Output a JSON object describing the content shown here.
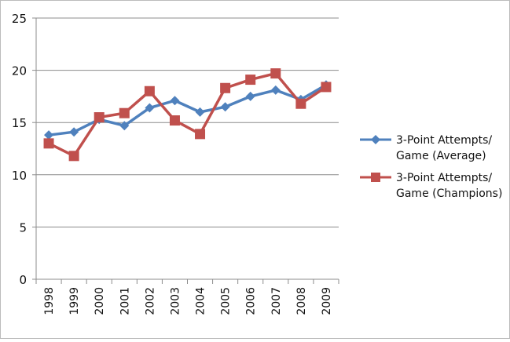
{
  "chart_data": {
    "type": "line",
    "categories": [
      "1998",
      "1999",
      "2000",
      "2001",
      "2002",
      "2003",
      "2004",
      "2005",
      "2006",
      "2007",
      "2008",
      "2009"
    ],
    "ylim": [
      0,
      25
    ],
    "yticks": [
      0,
      5,
      10,
      15,
      20,
      25
    ],
    "grid": true,
    "legend_position": "right",
    "series": [
      {
        "name": "3-Point Attempts/ Game (Average)",
        "name_lines": [
          "3-Point Attempts/",
          "Game (Average)"
        ],
        "color": "#4f81bd",
        "marker": "diamond",
        "values": [
          13.8,
          14.1,
          15.3,
          14.7,
          16.4,
          17.1,
          16.0,
          16.5,
          17.5,
          18.1,
          17.2,
          18.6
        ]
      },
      {
        "name": "3-Point Attempts/ Game (Champions)",
        "name_lines": [
          "3-Point Attempts/",
          "Game (Champions)"
        ],
        "color": "#c0504d",
        "marker": "square",
        "values": [
          13.0,
          11.8,
          15.5,
          15.9,
          18.0,
          15.2,
          13.9,
          18.3,
          19.1,
          19.7,
          16.8,
          18.4
        ]
      }
    ]
  }
}
